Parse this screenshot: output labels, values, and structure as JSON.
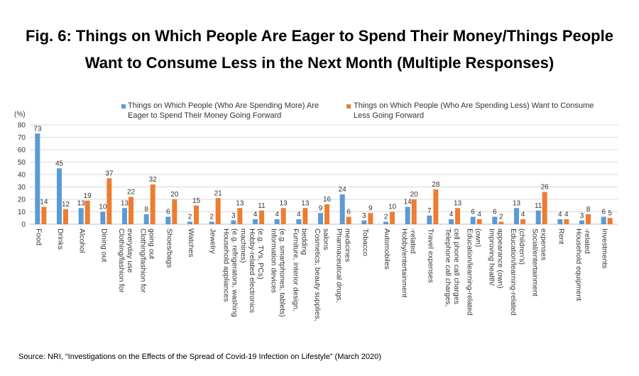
{
  "title_line1": "Fig. 6: Things on Which People Are Eager to Spend Their Money/Things People",
  "title_line2": "Want to Consume Less in the Next Month (Multiple Responses)",
  "source": "Source: NRI, “Investigations on the Effects of the Spread of Covid-19 Infection on Lifestyle” (March 2020)",
  "colors": {
    "series1": "#5B9BD5",
    "series2": "#ED7D31",
    "grid": "#D9D9D9",
    "axis": "#BFBFBF"
  },
  "chart_data": {
    "type": "bar",
    "ylabel": "(%)",
    "ylim": [
      0,
      80
    ],
    "yticks": [
      0,
      10,
      20,
      30,
      40,
      50,
      60,
      70,
      80
    ],
    "grid": true,
    "legend_position": "top",
    "categories": [
      "Food",
      "Drinks",
      "Alcohol",
      "Dining out",
      "Clothing/fashion for everyday use",
      "Clothing/fashion for going out",
      "Shoes/bags",
      "Watches",
      "Jewelry",
      "Household appliances (e.g. refrigerators, washing machines)",
      "Hobby-related electronics (e.g. TVs, PCs)",
      "Information devices (e.g. smartphones, tablets)",
      "Furniture, interior design, bedding",
      "Cosmetics, beauty supplies, salons",
      "Pharmaceutical drugs, medicines",
      "Tobacco",
      "Automobiles",
      "Hobby/entertainment -related",
      "Travel expenses",
      "Telephone call charges, cell phone call charges",
      "Education/learning-related (own)",
      "Improving health/ appearance (own)",
      "Education/learning-related (children's)",
      "Social/entertainment expenses",
      "Rent",
      "Household equipment -related",
      "Investments"
    ],
    "category_lines": [
      [
        "Food"
      ],
      [
        "Drinks"
      ],
      [
        "Alcohol"
      ],
      [
        "Dining out"
      ],
      [
        "Clothing/fashion for",
        "everyday use"
      ],
      [
        "Clothing/fashion for",
        "going out"
      ],
      [
        "Shoes/bags"
      ],
      [
        "Watches"
      ],
      [
        "Jewelry"
      ],
      [
        "Household appliances",
        "(e.g. refrigerators, washing",
        "machines)"
      ],
      [
        "Hobby-related electronics",
        "(e.g. TVs, PCs)"
      ],
      [
        "Information devices",
        "(e.g. smartphones, tablets)"
      ],
      [
        "Furniture, interior design,",
        "bedding"
      ],
      [
        "Cosmetics, beauty supplies,",
        "salons"
      ],
      [
        "Pharmaceutical drugs,",
        "medicines"
      ],
      [
        "Tobacco"
      ],
      [
        "Automobiles"
      ],
      [
        "Hobby/entertainment",
        "-related"
      ],
      [
        "Travel expenses"
      ],
      [
        "Telephone call charges,",
        "cell phone call charges"
      ],
      [
        "Education/learning-related",
        "(own)"
      ],
      [
        "Improving health/",
        "appearance (own)"
      ],
      [
        "Education/learning-related",
        "(children's)"
      ],
      [
        "Social/entertainment",
        "expenses"
      ],
      [
        "Rent"
      ],
      [
        "Household equipment",
        "-related"
      ],
      [
        "Investments"
      ]
    ],
    "series": [
      {
        "name": "Things on Which People (Who Are Spending More) Are Eager to Spend Their Money Going Forward",
        "legend_lines": [
          "Things on Which People (Who Are Spending More) Are",
          "Eager to Spend Their Money Going Forward"
        ],
        "values": [
          73,
          45,
          13,
          10,
          13,
          8,
          6,
          2,
          2,
          3,
          4,
          4,
          4,
          9,
          24,
          3,
          2,
          14,
          7,
          4,
          6,
          6,
          13,
          11,
          4,
          3,
          6
        ]
      },
      {
        "name": "Things on Which People (Who Are Spending Less) Want to Consume Less Going Forward",
        "legend_lines": [
          "Things on Which People (Who Are Spending Less) Want to Consume",
          "Less Going Forward"
        ],
        "values": [
          14,
          12,
          19,
          37,
          22,
          32,
          20,
          15,
          21,
          13,
          11,
          13,
          13,
          16,
          6,
          9,
          10,
          20,
          28,
          13,
          4,
          2,
          4,
          26,
          4,
          8,
          5
        ]
      }
    ]
  }
}
